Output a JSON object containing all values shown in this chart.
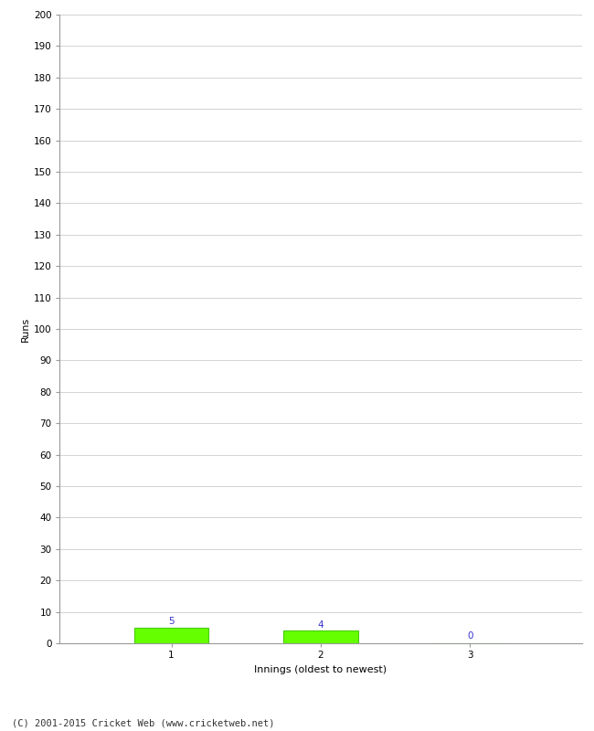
{
  "xlabel": "Innings (oldest to newest)",
  "ylabel": "Runs",
  "categories": [
    1,
    2,
    3
  ],
  "values": [
    5,
    4,
    0
  ],
  "bar_color": "#66ff00",
  "bar_edge_color": "#44cc00",
  "value_color": "#3333cc",
  "ylim": [
    0,
    200
  ],
  "yticks": [
    0,
    10,
    20,
    30,
    40,
    50,
    60,
    70,
    80,
    90,
    100,
    110,
    120,
    130,
    140,
    150,
    160,
    170,
    180,
    190,
    200
  ],
  "xticks": [
    1,
    2,
    3
  ],
  "background_color": "#ffffff",
  "grid_color": "#cccccc",
  "footer": "(C) 2001-2015 Cricket Web (www.cricketweb.net)",
  "value_fontsize": 7.5,
  "label_fontsize": 8,
  "tick_fontsize": 7.5,
  "footer_fontsize": 7.5,
  "bar_width": 0.5
}
